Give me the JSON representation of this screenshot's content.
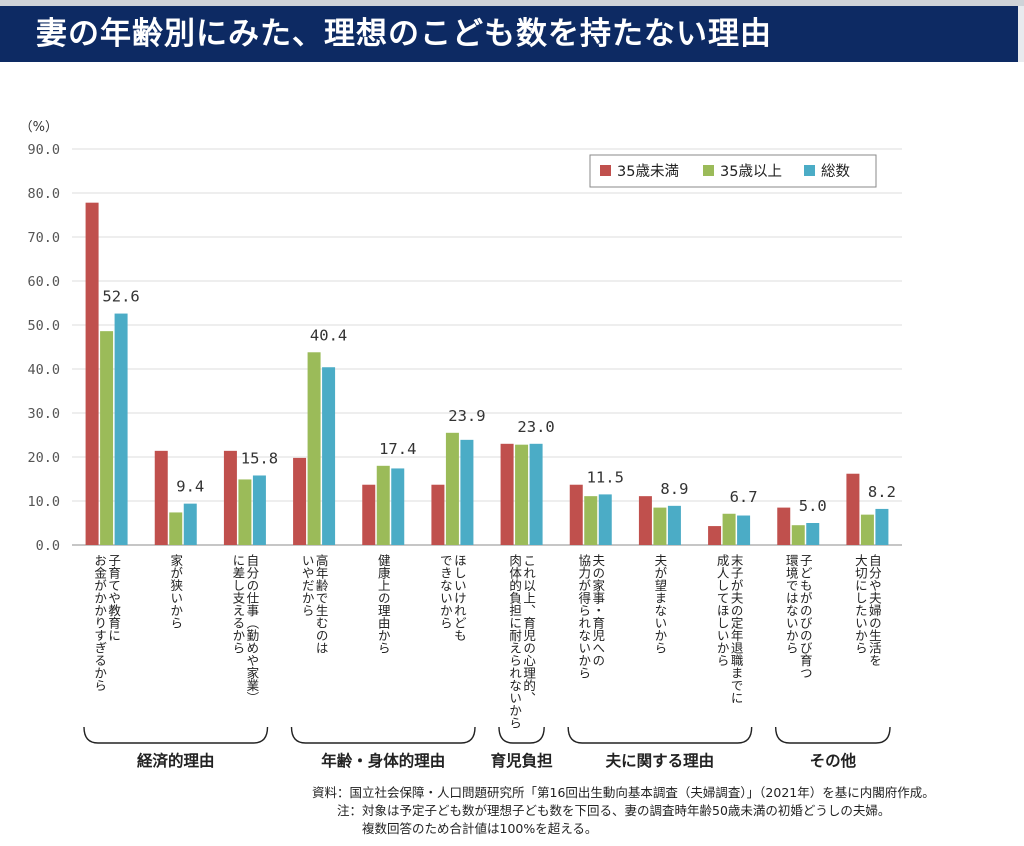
{
  "title": "妻の年齢別にみた、理想のこども数を持たない理由",
  "colors": {
    "title_bg": "#0d2a63",
    "series": [
      "#c0504d",
      "#9bbb59",
      "#4bacc6"
    ]
  },
  "chart_data": {
    "type": "bar",
    "y_unit": "（%）",
    "ylim": [
      0,
      90
    ],
    "yticks": [
      "0.0",
      "10.0",
      "20.0",
      "30.0",
      "40.0",
      "50.0",
      "60.0",
      "70.0",
      "80.0",
      "90.0"
    ],
    "grid": true,
    "legend_position": "top-right",
    "categories": [
      [
        "子育てや教育に",
        "お金がかかりすぎるから"
      ],
      [
        "家が狭いから"
      ],
      [
        "自分の仕事（勤めや家業）",
        "に差し支えるから"
      ],
      [
        "高年齢で生むのは",
        "いやだから"
      ],
      [
        "健康上の理由から"
      ],
      [
        "ほしいけれども",
        "できないから"
      ],
      [
        "これ以上、育児の心理的、",
        "肉体的負担に耐えられないから"
      ],
      [
        "夫の家事・育児への",
        "協力が得られないから"
      ],
      [
        "夫が望まないから"
      ],
      [
        "末子が夫の定年退職までに",
        "成人してほしいから"
      ],
      [
        "子どもがのびのび育つ",
        "環境ではないから"
      ],
      [
        "自分や夫婦の生活を",
        "大切にしたいから"
      ]
    ],
    "series": [
      {
        "name": "35歳未満",
        "values": [
          77.8,
          21.4,
          21.4,
          19.8,
          13.7,
          13.7,
          23.0,
          13.7,
          11.1,
          4.3,
          8.5,
          16.2
        ]
      },
      {
        "name": "35歳以上",
        "values": [
          48.6,
          7.4,
          14.9,
          43.8,
          18.0,
          25.5,
          22.8,
          11.1,
          8.5,
          7.1,
          4.5,
          6.9
        ]
      },
      {
        "name": "総数",
        "values": [
          52.6,
          9.4,
          15.8,
          40.4,
          17.4,
          23.9,
          23.0,
          11.5,
          8.9,
          6.7,
          5.0,
          8.2
        ]
      }
    ],
    "data_labels": [
      "52.6",
      "9.4",
      "15.8",
      "40.4",
      "17.4",
      "23.9",
      "23.0",
      "11.5",
      "8.9",
      "6.7",
      "5.0",
      "8.2"
    ],
    "groups": [
      {
        "label": "経済的理由",
        "from": 0,
        "to": 2
      },
      {
        "label": "年齢・身体的理由",
        "from": 3,
        "to": 5
      },
      {
        "label": "育児負担",
        "from": 6,
        "to": 6
      },
      {
        "label": "夫に関する理由",
        "from": 7,
        "to": 9
      },
      {
        "label": "その他",
        "from": 10,
        "to": 11
      }
    ]
  },
  "footnotes": [
    "資料：国立社会保障・人口問題研究所「第16回出生動向基本調査（夫婦調査）」（2021年）を基に内閣府作成。",
    "　　注：対象は予定子ども数が理想子ども数を下回る、妻の調査時年齢50歳未満の初婚どうしの夫婦。",
    "　　　　複数回答のため合計値は100%を超える。"
  ]
}
